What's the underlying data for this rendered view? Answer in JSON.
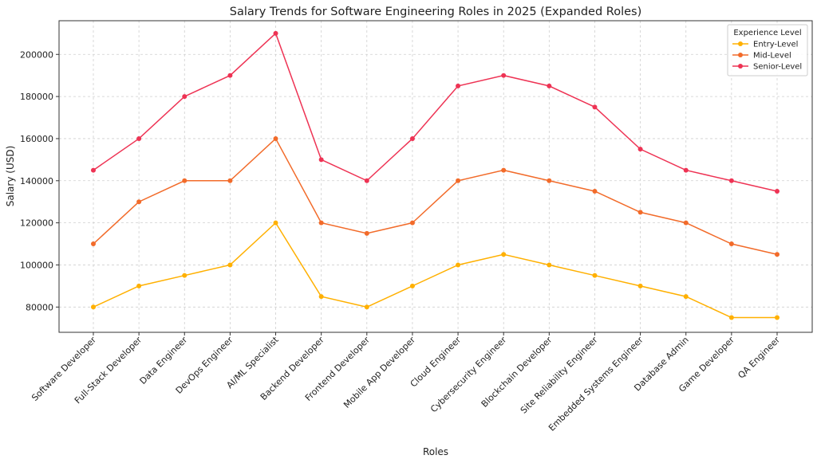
{
  "chart_data": {
    "type": "line",
    "title": "Salary Trends for Software Engineering Roles in 2025 (Expanded Roles)",
    "xlabel": "Roles",
    "ylabel": "Salary (USD)",
    "categories": [
      "Software Developer",
      "Full-Stack Developer",
      "Data Engineer",
      "DevOps Engineer",
      "AI/ML Specialist",
      "Backend Developer",
      "Frontend Developer",
      "Mobile App Developer",
      "Cloud Engineer",
      "Cybersecurity Engineer",
      "Blockchain Developer",
      "Site Reliability Engineer",
      "Embedded Systems Engineer",
      "Database Admin",
      "Game Developer",
      "QA Engineer"
    ],
    "ylim": [
      68000,
      216000
    ],
    "yticks": [
      80000,
      100000,
      120000,
      140000,
      160000,
      180000,
      200000
    ],
    "grid": true,
    "legend_title": "Experience Level",
    "legend_position": "top-right",
    "series": [
      {
        "name": "Entry-Level",
        "color": "#FFB000",
        "values": [
          80000,
          90000,
          95000,
          100000,
          120000,
          85000,
          80000,
          90000,
          100000,
          105000,
          100000,
          95000,
          90000,
          85000,
          75000,
          75000
        ]
      },
      {
        "name": "Mid-Level",
        "color": "#F26B2A",
        "values": [
          110000,
          130000,
          140000,
          140000,
          160000,
          120000,
          115000,
          120000,
          140000,
          145000,
          140000,
          135000,
          125000,
          120000,
          110000,
          105000
        ]
      },
      {
        "name": "Senior-Level",
        "color": "#EE3354",
        "values": [
          145000,
          160000,
          180000,
          190000,
          210000,
          150000,
          140000,
          160000,
          185000,
          190000,
          185000,
          175000,
          155000,
          145000,
          140000,
          135000
        ]
      }
    ]
  }
}
